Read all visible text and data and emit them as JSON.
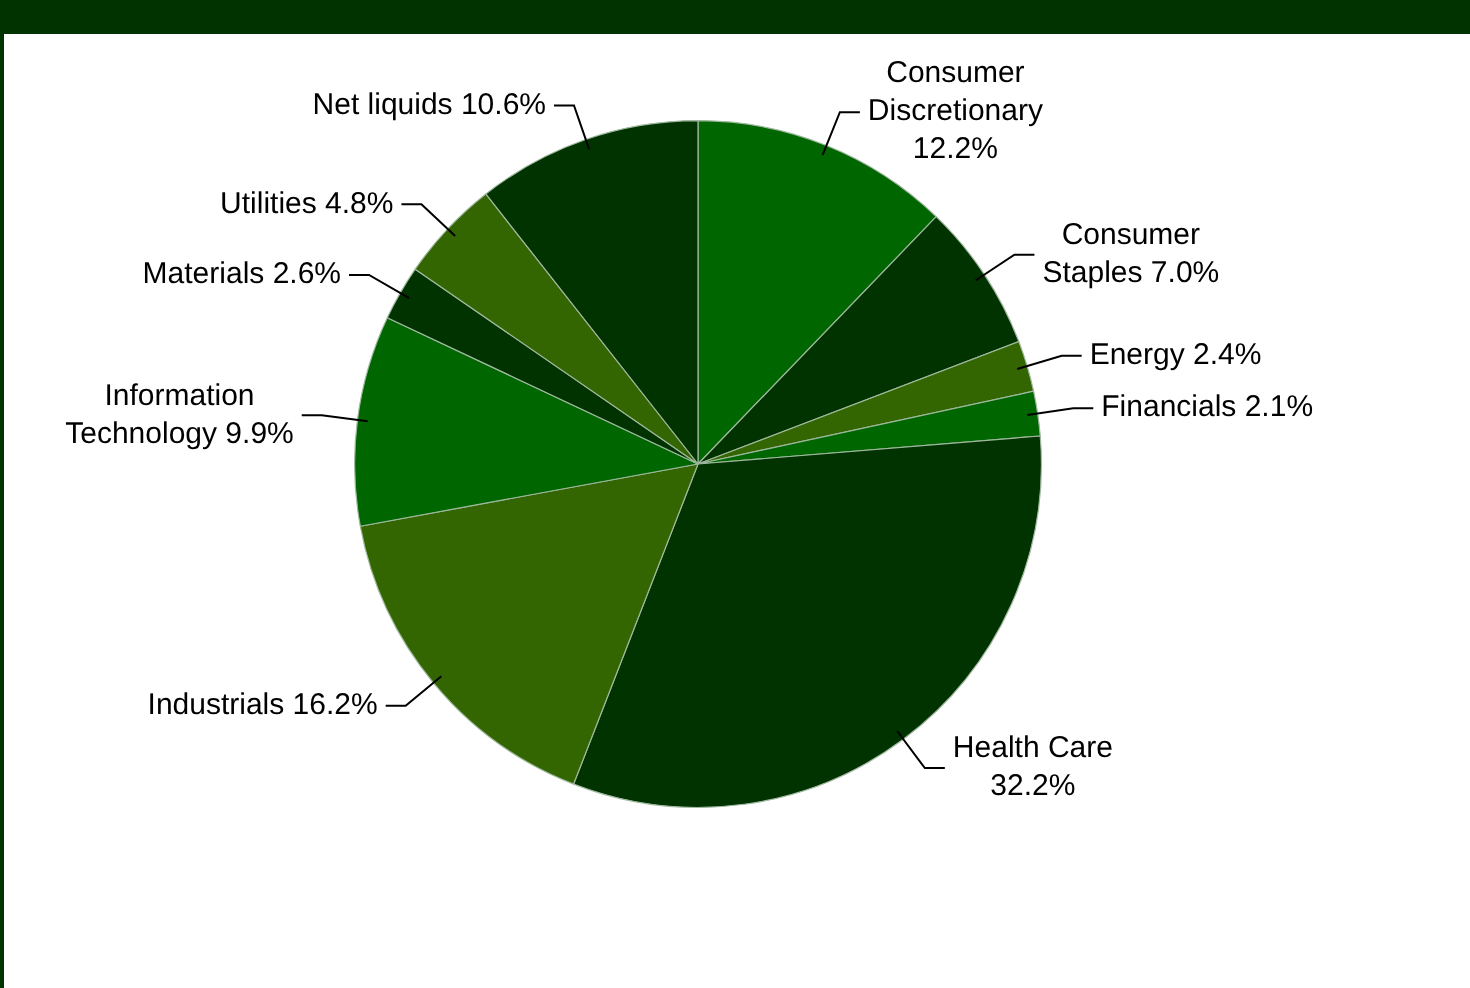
{
  "chart_data": {
    "type": "pie",
    "categories": [
      "Consumer Discretionary",
      "Consumer Staples",
      "Energy",
      "Financials",
      "Health Care",
      "Industrials",
      "Information Technology",
      "Materials",
      "Utilities",
      "Net liquids"
    ],
    "values": [
      12.2,
      7.0,
      2.4,
      2.1,
      32.2,
      16.2,
      9.9,
      2.6,
      4.8,
      10.6
    ],
    "value_labels": [
      "12.2%",
      "7.0%",
      "2.4%",
      "2.1%",
      "32.2%",
      "16.2%",
      "9.9%",
      "2.6%",
      "4.8%",
      "10.6%"
    ],
    "colors": [
      "#006600",
      "#003300",
      "#336600",
      "#006600",
      "#003300",
      "#336600",
      "#006600",
      "#003300",
      "#336600",
      "#003300"
    ]
  }
}
